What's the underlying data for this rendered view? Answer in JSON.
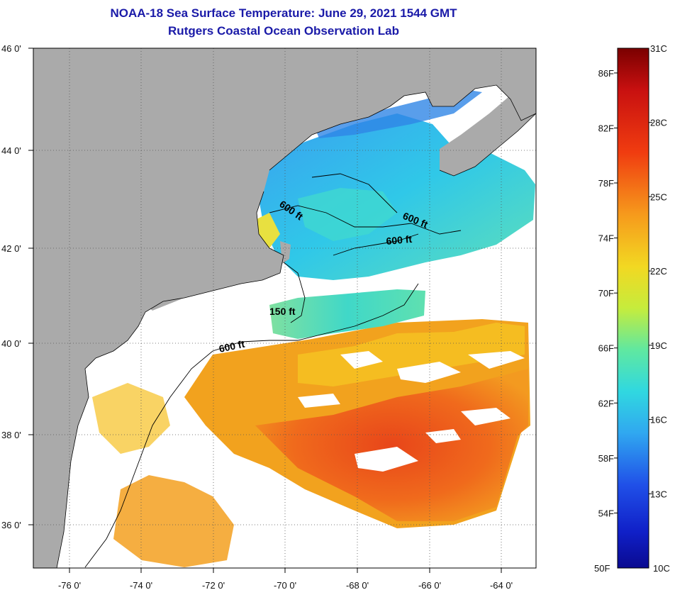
{
  "title": {
    "line1": "NOAA-18 Sea Surface Temperature:  June 29, 2021 1544 GMT",
    "line2": "Rutgers Coastal Ocean Observation Lab"
  },
  "map": {
    "lon_labels": [
      "-76 0'",
      "-74 0'",
      "-72 0'",
      "-70 0'",
      "-68 0'",
      "-66 0'",
      "-64 0'"
    ],
    "lat_labels": [
      "46 0'",
      "44 0'",
      "42 0'",
      "40 0'",
      "38 0'",
      "36 0'"
    ],
    "contour_labels": [
      "600 ft",
      "600 ft",
      "600 ft",
      "150 ft",
      "600 ft"
    ],
    "colors": {
      "land": "#aaaaaa",
      "nodata": "#ffffff",
      "frame": "#000000"
    }
  },
  "colorbar": {
    "top_label": "31C",
    "bottom_left": "50F",
    "bottom_right": "10C",
    "fahrenheit": [
      "86F",
      "82F",
      "78F",
      "74F",
      "70F",
      "66F",
      "62F",
      "58F",
      "54F"
    ],
    "celsius": [
      "28C",
      "25C",
      "22C",
      "19C",
      "16C",
      "13C"
    ],
    "range_c": [
      10,
      31
    ],
    "range_f": [
      50,
      87.8
    ]
  }
}
